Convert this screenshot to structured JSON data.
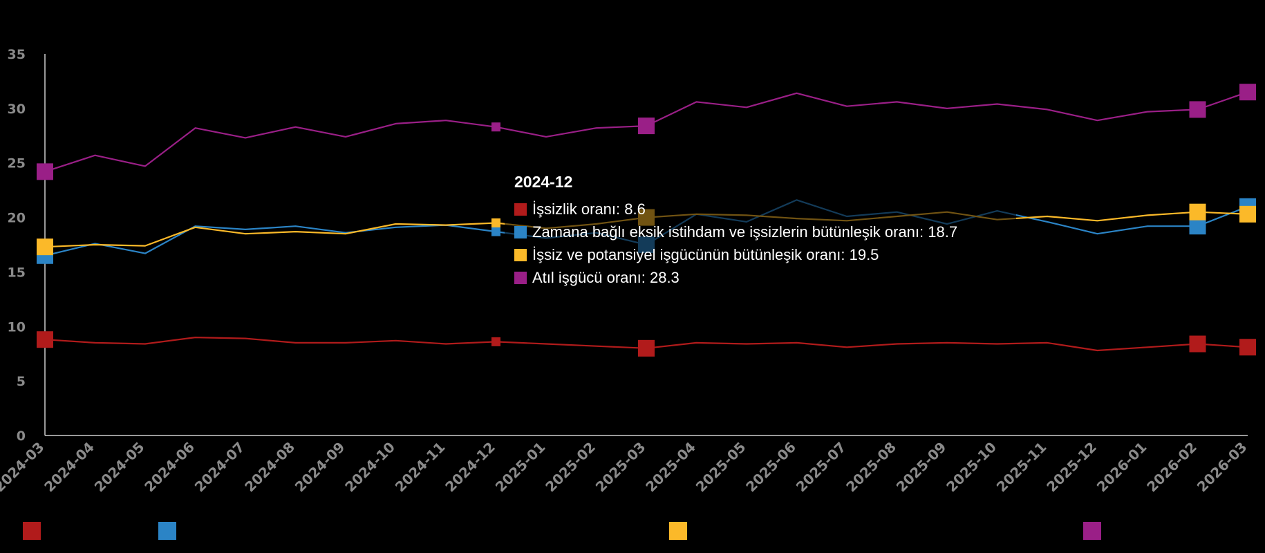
{
  "chart_data": {
    "type": "line",
    "categories": [
      "2024-03",
      "2024-04",
      "2024-05",
      "2024-06",
      "2024-07",
      "2024-08",
      "2024-09",
      "2024-10",
      "2024-11",
      "2024-12",
      "2025-01",
      "2025-02",
      "2025-03",
      "2025-04",
      "2025-05",
      "2025-06",
      "2025-07",
      "2025-08",
      "2025-09",
      "2025-10",
      "2025-11",
      "2025-12",
      "2026-01",
      "2026-02",
      "2026-03"
    ],
    "ylim": [
      0,
      35
    ],
    "yticks": [
      0,
      5,
      10,
      15,
      20,
      25,
      30,
      35
    ],
    "grid": false,
    "legend": "bottom",
    "series": [
      {
        "color": "#b11b1b",
        "values": [
          8.8,
          8.5,
          8.4,
          9.0,
          8.9,
          8.5,
          8.5,
          8.7,
          8.4,
          8.6,
          8.4,
          8.2,
          8.0,
          8.5,
          8.4,
          8.5,
          8.1,
          8.4,
          8.5,
          8.4,
          8.5,
          7.8,
          8.1,
          8.4,
          8.1
        ]
      },
      {
        "color": "#2b84c6",
        "values": [
          16.5,
          17.6,
          16.7,
          19.2,
          18.9,
          19.2,
          18.6,
          19.1,
          19.3,
          18.7,
          18.1,
          18.6,
          17.5,
          20.3,
          19.6,
          21.6,
          20.1,
          20.5,
          19.4,
          20.6,
          19.6,
          18.5,
          19.2,
          19.2,
          21.0
        ]
      },
      {
        "color": "#fbb929",
        "values": [
          17.3,
          17.5,
          17.4,
          19.1,
          18.5,
          18.7,
          18.5,
          19.4,
          19.3,
          19.5,
          19.0,
          19.4,
          20.0,
          20.3,
          20.2,
          19.9,
          19.7,
          20.1,
          20.5,
          19.8,
          20.1,
          19.7,
          20.2,
          20.5,
          20.3
        ]
      },
      {
        "color": "#9a1f87",
        "values": [
          24.2,
          25.7,
          24.7,
          28.2,
          27.3,
          28.3,
          27.4,
          28.6,
          28.9,
          28.3,
          27.4,
          28.2,
          28.4,
          30.6,
          30.1,
          31.4,
          30.2,
          30.6,
          30.0,
          30.4,
          29.9,
          28.9,
          29.7,
          29.9,
          31.5
        ]
      }
    ]
  },
  "tooltip": {
    "title": "2024-12",
    "rows": [
      {
        "label": "İşsizlik oranı: 8.6",
        "color": "#b11b1b"
      },
      {
        "label": "Zamana bağlı eksik istihdam ve işsizlerin bütünleşik oranı: 18.7",
        "color": "#2b84c6"
      },
      {
        "label": "İşsiz ve potansiyel işgücünün bütünleşik oranı: 19.5",
        "color": "#fbb929"
      },
      {
        "label": "Atıl işgücü oranı: 28.3",
        "color": "#9a1f87"
      }
    ]
  }
}
